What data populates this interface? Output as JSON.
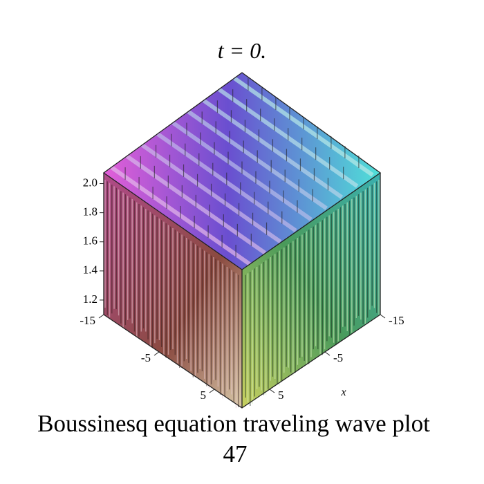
{
  "chart_data": {
    "type": "surface",
    "title": "t = 0.",
    "caption": "Boussinesq equation  traveling wave plot",
    "page_number": "47",
    "xlabel": "x",
    "xlim": [
      -15,
      10
    ],
    "xticks": [
      -15,
      -5,
      5
    ],
    "ylim": [
      -15,
      10
    ],
    "yticks": [
      -15,
      -5,
      5
    ],
    "zlim": [
      1.1,
      2.05
    ],
    "zticks": [
      {
        "value": 2,
        "label": "2.0"
      },
      1.8,
      1.6,
      1.4,
      1.2
    ]
  }
}
